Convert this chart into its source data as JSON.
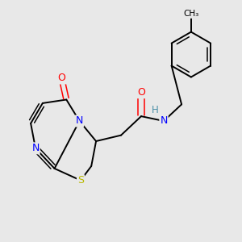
{
  "bg_color": "#e8e8e8",
  "bond_color": "#000000",
  "atom_colors": {
    "S": "#b8b800",
    "N": "#0000ff",
    "O": "#ff0000",
    "H": "#4a8fa8",
    "C": "#000000"
  },
  "lw": 1.4,
  "lw2": 1.1
}
